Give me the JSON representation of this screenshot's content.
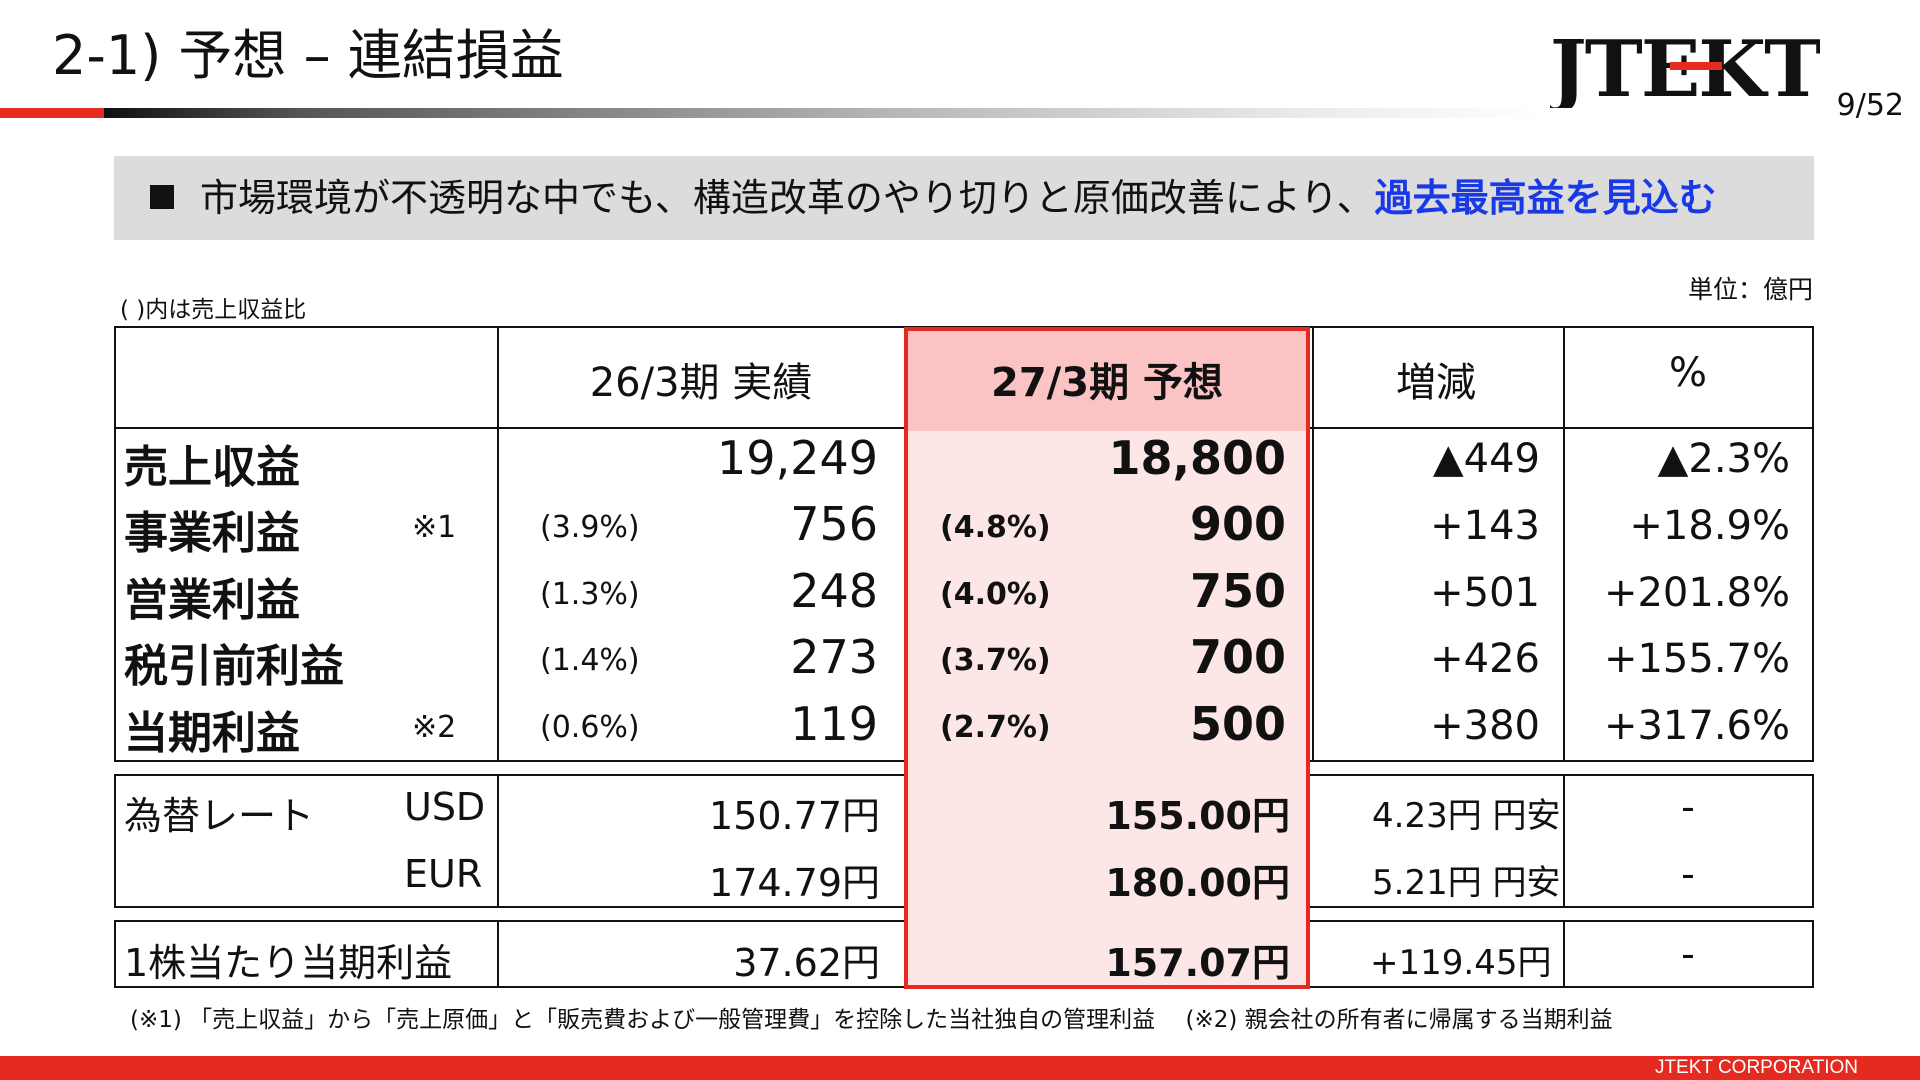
{
  "header": {
    "title": "2-1) 予想 – 連結損益",
    "logo_text": "JTEKT",
    "page": "9/52"
  },
  "headline": {
    "text": "市場環境が不透明な中でも、構造改革のやり切りと原価改善により、",
    "highlight": "過去最高益を見込む"
  },
  "notes": {
    "ratio_note": "( )内は売上収益比",
    "unit": "単位：億円"
  },
  "table": {
    "headers": [
      "26/3期 実績",
      "27/3期 予想",
      "増減",
      "%"
    ],
    "rows": [
      {
        "label": "売上収益",
        "note": "",
        "actual_pct": "",
        "actual": "19,249",
        "forecast_pct": "",
        "forecast": "18,800",
        "change": "▲449",
        "change_pct": "▲2.3%"
      },
      {
        "label": "事業利益",
        "note": "※1",
        "actual_pct": "(3.9%)",
        "actual": "756",
        "forecast_pct": "(4.8%)",
        "forecast": "900",
        "change": "+143",
        "change_pct": "+18.9%"
      },
      {
        "label": "営業利益",
        "note": "",
        "actual_pct": "(1.3%)",
        "actual": "248",
        "forecast_pct": "(4.0%)",
        "forecast": "750",
        "change": "+501",
        "change_pct": "+201.8%"
      },
      {
        "label": "税引前利益",
        "note": "",
        "actual_pct": "(1.4%)",
        "actual": "273",
        "forecast_pct": "(3.7%)",
        "forecast": "700",
        "change": "+426",
        "change_pct": "+155.7%"
      },
      {
        "label": "当期利益",
        "note": "※2",
        "actual_pct": "(0.6%)",
        "actual": "119",
        "forecast_pct": "(2.7%)",
        "forecast": "500",
        "change": "+380",
        "change_pct": "+317.6%"
      }
    ],
    "fx": {
      "label": "為替レート",
      "rows": [
        {
          "currency": "USD",
          "actual": "150.77円",
          "forecast": "155.00円",
          "change": "4.23円 円安",
          "pct": "-"
        },
        {
          "currency": "EUR",
          "actual": "174.79円",
          "forecast": "180.00円",
          "change": "5.21円 円安",
          "pct": "-"
        }
      ]
    },
    "eps": {
      "label": "1株当たり当期利益",
      "actual": "37.62円",
      "forecast": "157.07円",
      "change": "+119.45円",
      "pct": "-"
    }
  },
  "footnote": "(※1) 「売上収益」から「売上原価」と「販売費および一般管理費」を控除した当社独自の管理利益　 (※2) 親会社の所有者に帰属する当期利益",
  "footer": {
    "company": "JTEKT  CORPORATION"
  },
  "colors": {
    "brand_red": "#e52a1f",
    "highlight_blue": "#1a39e6",
    "forecast_bg": "#fde6e6",
    "forecast_header_bg": "#fbc3c3"
  }
}
